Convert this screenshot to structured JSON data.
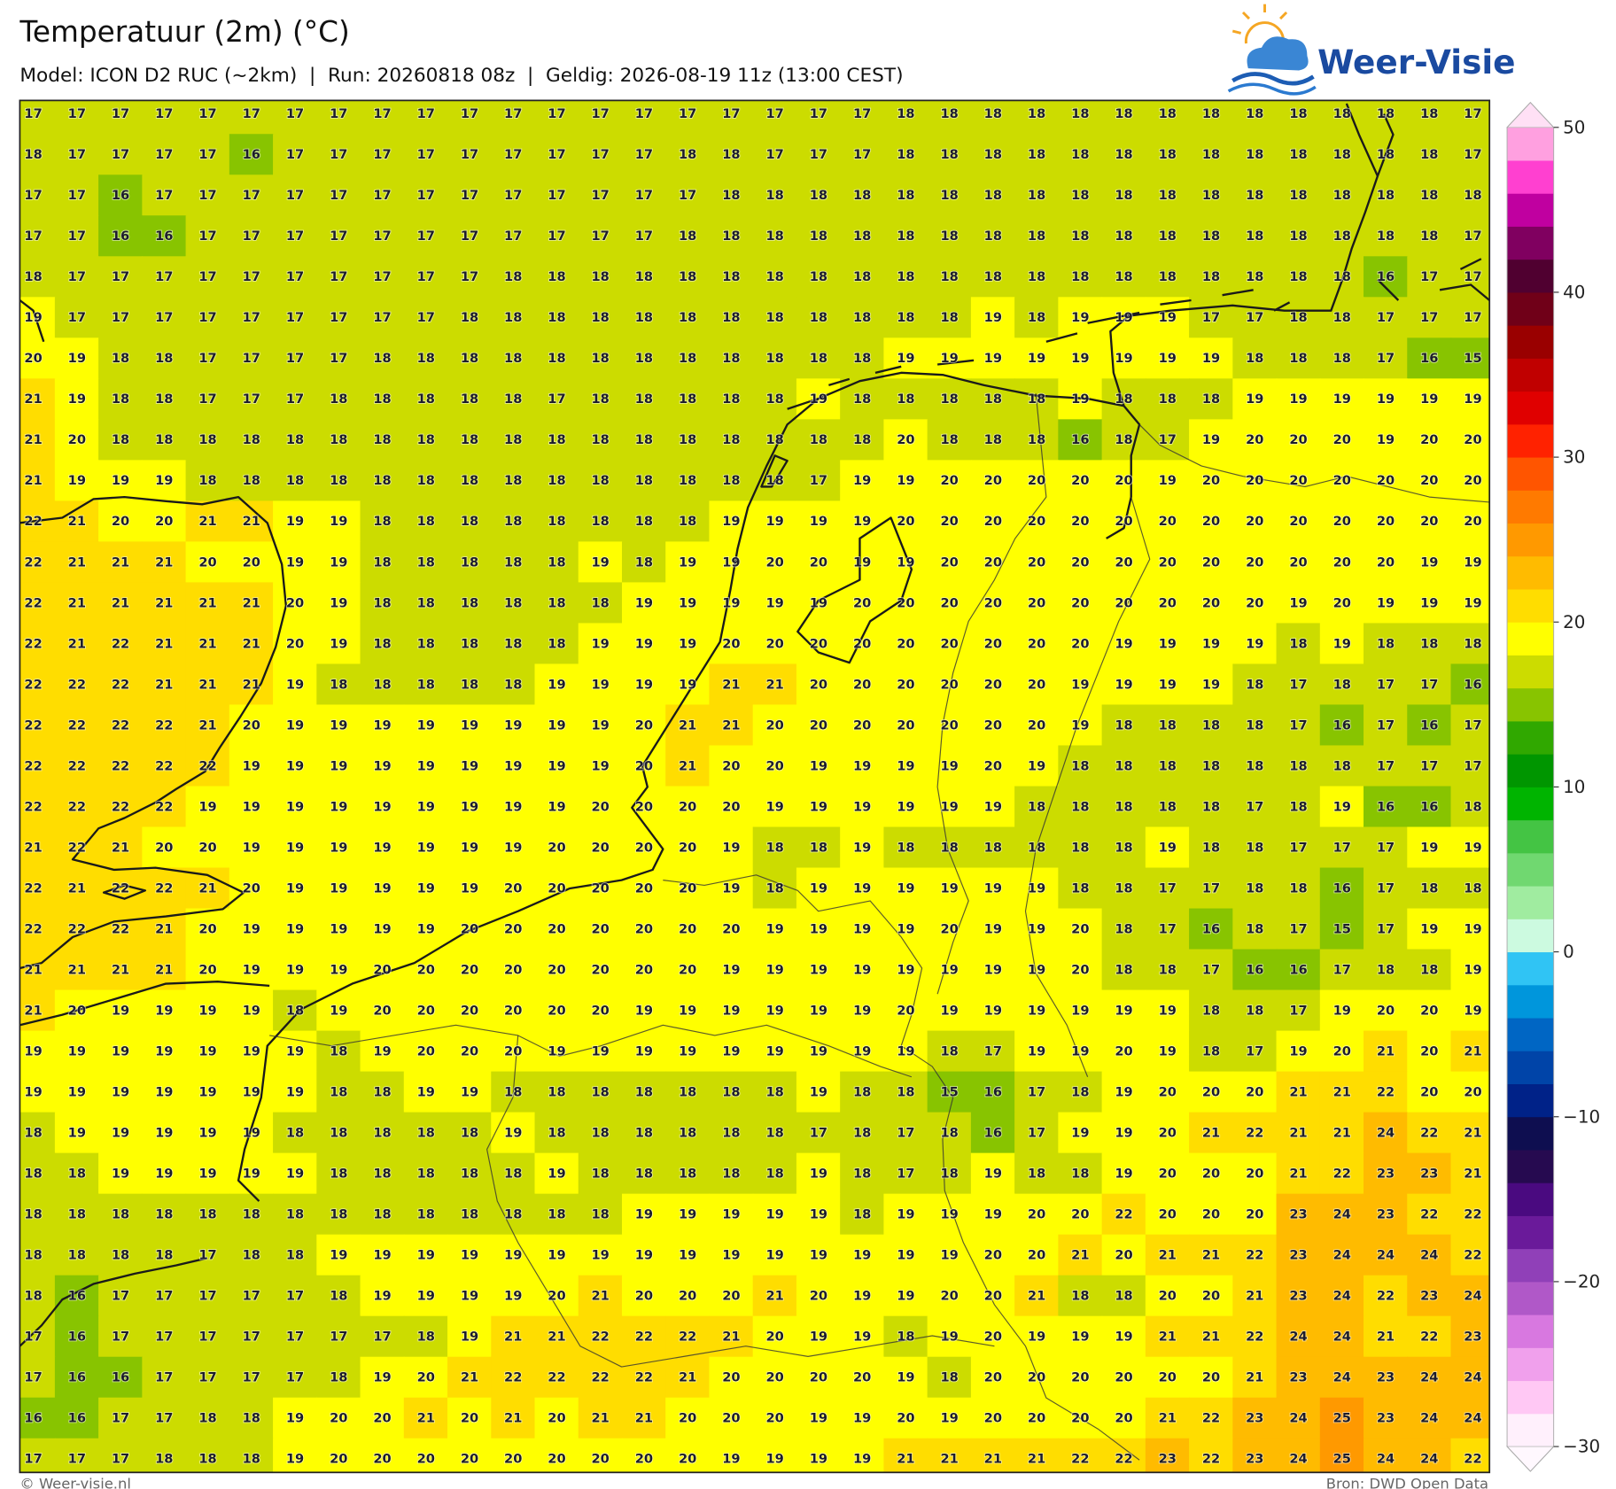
{
  "chart_data": {
    "type": "heatmap",
    "title": "Temperatuur (2m) (°C)",
    "subtitle": "Model: ICON D2 RUC (~2km)  |  Run: 20260818 08z  |  Geldig: 2026-08-19 11z (13:00 CEST)",
    "brand": "Weer-Visie",
    "credit": "© Weer-visie.nl",
    "source": "Bron: DWD Open Data",
    "values": [
      [
        17,
        17,
        17,
        17,
        17,
        17,
        17,
        17,
        17,
        17,
        17,
        17,
        17,
        17,
        17,
        17,
        17,
        17,
        17,
        17,
        18,
        18,
        18,
        18,
        18,
        18,
        18,
        18,
        18,
        18,
        18,
        18,
        18,
        17
      ],
      [
        18,
        17,
        17,
        17,
        17,
        16,
        17,
        17,
        17,
        17,
        17,
        17,
        17,
        17,
        17,
        18,
        18,
        17,
        17,
        17,
        18,
        18,
        18,
        18,
        18,
        18,
        18,
        18,
        18,
        18,
        18,
        18,
        18,
        17
      ],
      [
        17,
        17,
        16,
        17,
        17,
        17,
        17,
        17,
        17,
        17,
        17,
        17,
        17,
        17,
        17,
        17,
        18,
        18,
        18,
        18,
        18,
        18,
        18,
        18,
        18,
        18,
        18,
        18,
        18,
        18,
        18,
        18,
        18,
        18
      ],
      [
        17,
        17,
        16,
        16,
        17,
        17,
        17,
        17,
        17,
        17,
        17,
        17,
        17,
        17,
        17,
        18,
        18,
        18,
        18,
        18,
        18,
        18,
        18,
        18,
        18,
        18,
        18,
        18,
        18,
        18,
        18,
        18,
        18,
        17
      ],
      [
        18,
        17,
        17,
        17,
        17,
        17,
        17,
        17,
        17,
        17,
        17,
        18,
        18,
        18,
        18,
        18,
        18,
        18,
        18,
        18,
        18,
        18,
        18,
        18,
        18,
        18,
        18,
        18,
        18,
        18,
        18,
        16,
        17,
        17
      ],
      [
        19,
        17,
        17,
        17,
        17,
        17,
        17,
        17,
        17,
        17,
        18,
        18,
        18,
        18,
        18,
        18,
        18,
        18,
        18,
        18,
        18,
        18,
        19,
        18,
        19,
        19,
        19,
        17,
        17,
        18,
        18,
        17,
        17,
        17
      ],
      [
        20,
        19,
        18,
        18,
        17,
        17,
        17,
        17,
        18,
        18,
        18,
        18,
        18,
        18,
        18,
        18,
        18,
        18,
        18,
        18,
        19,
        19,
        19,
        19,
        19,
        19,
        19,
        19,
        18,
        18,
        18,
        17,
        16,
        15
      ],
      [
        21,
        19,
        18,
        18,
        17,
        17,
        17,
        18,
        18,
        18,
        18,
        18,
        17,
        18,
        18,
        18,
        18,
        18,
        19,
        18,
        18,
        18,
        18,
        18,
        19,
        18,
        18,
        18,
        19,
        19,
        19,
        19,
        19,
        19
      ],
      [
        21,
        20,
        18,
        18,
        18,
        18,
        18,
        18,
        18,
        18,
        18,
        18,
        18,
        18,
        18,
        18,
        18,
        18,
        18,
        18,
        20,
        18,
        18,
        18,
        16,
        18,
        17,
        19,
        20,
        20,
        20,
        19,
        20,
        20
      ],
      [
        21,
        19,
        19,
        19,
        18,
        18,
        18,
        18,
        18,
        18,
        18,
        18,
        18,
        18,
        18,
        18,
        18,
        18,
        17,
        19,
        19,
        20,
        20,
        20,
        20,
        20,
        19,
        20,
        20,
        20,
        20,
        20,
        20,
        20
      ],
      [
        22,
        21,
        20,
        20,
        21,
        21,
        19,
        19,
        18,
        18,
        18,
        18,
        18,
        18,
        18,
        18,
        19,
        19,
        19,
        19,
        20,
        20,
        20,
        20,
        20,
        20,
        20,
        20,
        20,
        20,
        20,
        20,
        20,
        20
      ],
      [
        22,
        21,
        21,
        21,
        20,
        20,
        19,
        19,
        18,
        18,
        18,
        18,
        18,
        19,
        18,
        19,
        19,
        20,
        20,
        19,
        19,
        20,
        20,
        20,
        20,
        20,
        20,
        20,
        20,
        20,
        20,
        20,
        19,
        19
      ],
      [
        22,
        21,
        21,
        21,
        21,
        21,
        20,
        19,
        18,
        18,
        18,
        18,
        18,
        18,
        19,
        19,
        19,
        19,
        19,
        20,
        20,
        20,
        20,
        20,
        20,
        20,
        20,
        20,
        20,
        19,
        20,
        19,
        19,
        19
      ],
      [
        22,
        21,
        22,
        21,
        21,
        21,
        20,
        19,
        18,
        18,
        18,
        18,
        18,
        19,
        19,
        19,
        20,
        20,
        20,
        20,
        20,
        20,
        20,
        20,
        20,
        19,
        19,
        19,
        19,
        18,
        19,
        18,
        18,
        18
      ],
      [
        22,
        22,
        22,
        21,
        21,
        21,
        19,
        18,
        18,
        18,
        18,
        18,
        19,
        19,
        19,
        19,
        21,
        21,
        20,
        20,
        20,
        20,
        20,
        20,
        19,
        19,
        19,
        19,
        18,
        17,
        18,
        17,
        17,
        16
      ],
      [
        22,
        22,
        22,
        22,
        21,
        20,
        19,
        19,
        19,
        19,
        19,
        19,
        19,
        19,
        20,
        21,
        21,
        20,
        20,
        20,
        20,
        20,
        20,
        20,
        19,
        18,
        18,
        18,
        18,
        17,
        16,
        17,
        16,
        17
      ],
      [
        22,
        22,
        22,
        22,
        22,
        19,
        19,
        19,
        19,
        19,
        19,
        19,
        19,
        19,
        20,
        21,
        20,
        20,
        19,
        19,
        19,
        19,
        20,
        19,
        18,
        18,
        18,
        18,
        18,
        18,
        18,
        17,
        17,
        17
      ],
      [
        22,
        22,
        22,
        22,
        19,
        19,
        19,
        19,
        19,
        19,
        19,
        19,
        19,
        20,
        20,
        20,
        20,
        19,
        19,
        19,
        19,
        19,
        19,
        18,
        18,
        18,
        18,
        18,
        17,
        18,
        19,
        16,
        16,
        18
      ],
      [
        21,
        22,
        21,
        20,
        20,
        19,
        19,
        19,
        19,
        19,
        19,
        19,
        20,
        20,
        20,
        20,
        19,
        18,
        18,
        19,
        18,
        18,
        18,
        18,
        18,
        18,
        19,
        18,
        18,
        17,
        17,
        17,
        19,
        19
      ],
      [
        22,
        21,
        22,
        22,
        21,
        20,
        19,
        19,
        19,
        19,
        19,
        20,
        20,
        20,
        20,
        20,
        19,
        18,
        19,
        19,
        19,
        19,
        19,
        19,
        18,
        18,
        17,
        17,
        18,
        18,
        16,
        17,
        18,
        18
      ],
      [
        22,
        22,
        22,
        21,
        20,
        19,
        19,
        19,
        19,
        19,
        20,
        20,
        20,
        20,
        20,
        20,
        20,
        19,
        19,
        19,
        19,
        20,
        19,
        19,
        20,
        18,
        17,
        16,
        18,
        17,
        15,
        17,
        19,
        19
      ],
      [
        21,
        21,
        21,
        21,
        20,
        19,
        19,
        19,
        20,
        20,
        20,
        20,
        20,
        20,
        20,
        20,
        19,
        19,
        19,
        19,
        19,
        19,
        19,
        19,
        20,
        18,
        18,
        17,
        16,
        16,
        17,
        18,
        18,
        19
      ],
      [
        21,
        20,
        19,
        19,
        19,
        19,
        18,
        19,
        20,
        20,
        20,
        20,
        20,
        20,
        19,
        19,
        19,
        19,
        19,
        19,
        20,
        19,
        19,
        19,
        19,
        19,
        19,
        18,
        18,
        17,
        19,
        20,
        20,
        19
      ],
      [
        19,
        19,
        19,
        19,
        19,
        19,
        19,
        18,
        19,
        20,
        20,
        20,
        19,
        19,
        19,
        19,
        19,
        19,
        19,
        19,
        19,
        18,
        17,
        19,
        19,
        20,
        19,
        18,
        17,
        19,
        20,
        21,
        20,
        21
      ],
      [
        19,
        19,
        19,
        19,
        19,
        19,
        19,
        18,
        18,
        19,
        19,
        18,
        18,
        18,
        18,
        18,
        18,
        18,
        19,
        18,
        18,
        15,
        16,
        17,
        18,
        19,
        20,
        20,
        20,
        21,
        21,
        22,
        20,
        20
      ],
      [
        18,
        19,
        19,
        19,
        19,
        19,
        18,
        18,
        18,
        18,
        18,
        19,
        18,
        18,
        18,
        18,
        18,
        18,
        17,
        18,
        17,
        18,
        16,
        17,
        19,
        19,
        20,
        21,
        22,
        21,
        21,
        24,
        22,
        21
      ],
      [
        18,
        18,
        19,
        19,
        19,
        19,
        19,
        18,
        18,
        18,
        18,
        18,
        19,
        18,
        18,
        18,
        18,
        18,
        19,
        18,
        17,
        18,
        19,
        18,
        18,
        19,
        20,
        20,
        20,
        21,
        22,
        23,
        23,
        21
      ],
      [
        18,
        18,
        18,
        18,
        18,
        18,
        18,
        18,
        18,
        18,
        18,
        18,
        18,
        18,
        19,
        19,
        19,
        19,
        19,
        18,
        19,
        19,
        19,
        20,
        20,
        22,
        20,
        20,
        20,
        23,
        24,
        23,
        22,
        22
      ],
      [
        18,
        18,
        18,
        18,
        17,
        18,
        18,
        19,
        19,
        19,
        19,
        19,
        19,
        19,
        19,
        19,
        19,
        19,
        19,
        19,
        19,
        19,
        20,
        20,
        21,
        20,
        21,
        21,
        22,
        23,
        24,
        24,
        24,
        22
      ],
      [
        18,
        16,
        17,
        17,
        17,
        17,
        17,
        18,
        19,
        19,
        19,
        19,
        20,
        21,
        20,
        20,
        20,
        21,
        20,
        19,
        19,
        20,
        20,
        21,
        18,
        18,
        20,
        20,
        21,
        23,
        24,
        22,
        23,
        24
      ],
      [
        17,
        16,
        17,
        17,
        17,
        17,
        17,
        17,
        17,
        18,
        19,
        21,
        21,
        22,
        22,
        22,
        21,
        20,
        19,
        19,
        18,
        19,
        20,
        19,
        19,
        19,
        21,
        21,
        22,
        24,
        24,
        21,
        22,
        23
      ],
      [
        17,
        16,
        16,
        17,
        17,
        17,
        17,
        18,
        19,
        20,
        21,
        22,
        22,
        22,
        22,
        21,
        20,
        20,
        20,
        20,
        19,
        18,
        20,
        20,
        20,
        20,
        20,
        20,
        21,
        23,
        24,
        23,
        24,
        24
      ],
      [
        16,
        16,
        17,
        17,
        18,
        18,
        19,
        20,
        20,
        21,
        20,
        21,
        20,
        21,
        21,
        20,
        20,
        20,
        19,
        19,
        20,
        19,
        20,
        20,
        20,
        20,
        21,
        22,
        23,
        24,
        25,
        23,
        24,
        24
      ],
      [
        17,
        17,
        17,
        18,
        18,
        18,
        19,
        20,
        20,
        20,
        20,
        20,
        20,
        20,
        20,
        20,
        19,
        19,
        19,
        19,
        21,
        21,
        21,
        21,
        22,
        22,
        23,
        22,
        23,
        24,
        25,
        24,
        24,
        22
      ]
    ],
    "colorbar": {
      "levels": [
        -30,
        -28,
        -26,
        -24,
        -22,
        -20,
        -18,
        -16,
        -14,
        -12,
        -10,
        -8,
        -6,
        -4,
        -2,
        0,
        2,
        4,
        6,
        8,
        10,
        12,
        14,
        16,
        18,
        20,
        22,
        24,
        26,
        28,
        30,
        32,
        34,
        36,
        38,
        40,
        42,
        44,
        46,
        48,
        50
      ],
      "colors": [
        "#fff0fc",
        "#ffc8f4",
        "#f0a0ec",
        "#d878e0",
        "#b058c8",
        "#9040b8",
        "#6a1a9a",
        "#4a0a80",
        "#260a50",
        "#0e0e50",
        "#002288",
        "#0044a8",
        "#0066c4",
        "#0096dc",
        "#30c4f4",
        "#ccfae0",
        "#a0eca0",
        "#70d870",
        "#44c444",
        "#00b400",
        "#009600",
        "#30a800",
        "#88c400",
        "#ccdc00",
        "#ffff00",
        "#ffdd00",
        "#ffbb00",
        "#ff9900",
        "#ff7a00",
        "#ff5500",
        "#ff2200",
        "#e00000",
        "#c00000",
        "#9a0000",
        "#700018",
        "#500030",
        "#800060",
        "#c000a0",
        "#ff40d0",
        "#ffa0e0"
      ],
      "under_color": "#fff8fe",
      "over_color": "#ffe0f5",
      "ticks": [
        50,
        40,
        30,
        20,
        10,
        0,
        {
          "value": -10,
          "label": "−10"
        },
        {
          "value": -20,
          "label": "−20"
        },
        {
          "value": -30,
          "label": "−30"
        }
      ]
    }
  }
}
